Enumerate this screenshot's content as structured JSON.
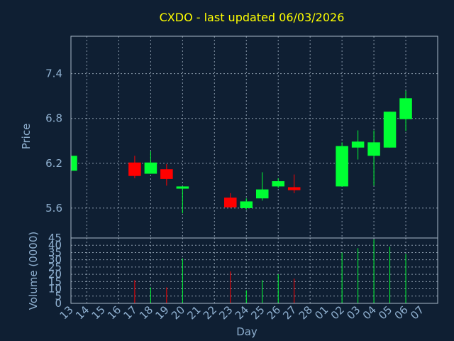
{
  "colors": {
    "up": "#00ff33",
    "down": "#ff0000",
    "background": "#0f1f33",
    "title": "#ffff00",
    "text": "#8fb0d0"
  },
  "chart_data": {
    "type": "candlestick",
    "title": "CXDO - last updated 06/03/2026",
    "xlabel": "Day",
    "price_ylabel": "Price",
    "volume_ylabel": "Volume (0000)",
    "x_ticks": [
      "13",
      "14",
      "15",
      "16",
      "17",
      "18",
      "19",
      "20",
      "21",
      "22",
      "23",
      "24",
      "25",
      "26",
      "27",
      "28",
      "01",
      "02",
      "03",
      "04",
      "05",
      "06",
      "07"
    ],
    "price_ylim": [
      5.2,
      7.9
    ],
    "price_ticks": [
      "5.6",
      "6.2",
      "6.8",
      "7.4"
    ],
    "volume_ylim": [
      0,
      45
    ],
    "volume_ticks": [
      "0",
      "5",
      "10",
      "15",
      "20",
      "25",
      "30",
      "35",
      "40",
      "45"
    ],
    "grid": true,
    "candles": [
      {
        "day": "13",
        "open": 6.1,
        "high": 6.3,
        "low": 6.1,
        "close": 6.3,
        "volume": 0
      },
      {
        "day": "17",
        "open": 6.21,
        "high": 6.3,
        "low": 6.0,
        "close": 6.03,
        "volume": 16
      },
      {
        "day": "18",
        "open": 6.06,
        "high": 6.36,
        "low": 6.06,
        "close": 6.21,
        "volume": 11
      },
      {
        "day": "19",
        "open": 6.12,
        "high": 6.19,
        "low": 5.9,
        "close": 5.99,
        "volume": 11
      },
      {
        "day": "20",
        "open": 5.86,
        "high": 5.89,
        "low": 5.53,
        "close": 5.89,
        "volume": 31
      },
      {
        "day": "23",
        "open": 5.74,
        "high": 5.8,
        "low": 5.6,
        "close": 5.61,
        "volume": 22
      },
      {
        "day": "24",
        "open": 5.6,
        "high": 5.73,
        "low": 5.58,
        "close": 5.69,
        "volume": 9
      },
      {
        "day": "25",
        "open": 5.73,
        "high": 6.08,
        "low": 5.7,
        "close": 5.85,
        "volume": 16
      },
      {
        "day": "26",
        "open": 5.89,
        "high": 6.0,
        "low": 5.87,
        "close": 5.96,
        "volume": 20
      },
      {
        "day": "27",
        "open": 5.88,
        "high": 6.05,
        "low": 5.8,
        "close": 5.84,
        "volume": 17
      },
      {
        "day": "02",
        "open": 5.89,
        "high": 6.48,
        "low": 5.89,
        "close": 6.43,
        "volume": 35
      },
      {
        "day": "03",
        "open": 6.41,
        "high": 6.64,
        "low": 6.25,
        "close": 6.49,
        "volume": 38
      },
      {
        "day": "04",
        "open": 6.3,
        "high": 6.64,
        "low": 5.9,
        "close": 6.48,
        "volume": 44
      },
      {
        "day": "05",
        "open": 6.41,
        "high": 6.89,
        "low": 6.41,
        "close": 6.89,
        "volume": 39
      },
      {
        "day": "06",
        "open": 6.79,
        "high": 7.17,
        "low": 6.63,
        "close": 7.07,
        "volume": 34
      }
    ]
  }
}
